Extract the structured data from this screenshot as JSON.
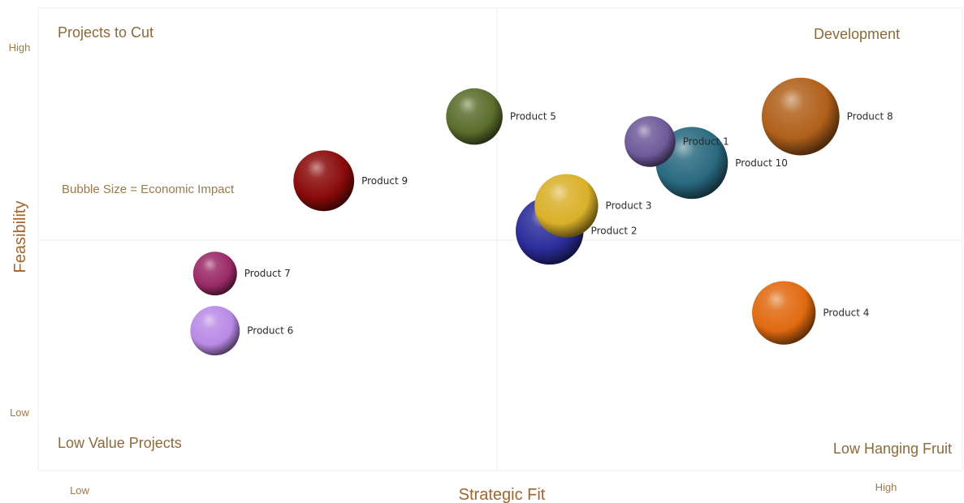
{
  "chart_data": {
    "type": "scatter",
    "title": "",
    "xlabel": "Strategic Fit",
    "ylabel": "Feasibility",
    "xlim": [
      0,
      10
    ],
    "ylim": [
      0,
      10
    ],
    "x_ticks": {
      "low": "Low",
      "high": "High"
    },
    "y_ticks": {
      "low": "Low",
      "high": "High"
    },
    "grid": false,
    "quadrant_dividers": {
      "x": 5,
      "y": 5
    },
    "quadrants": {
      "top_left": "Projects to Cut",
      "top_right": "Development",
      "bottom_left": "Low Value Projects",
      "bottom_right": "Low Hanging Fruit"
    },
    "annotation": "Bubble Size = Economic Impact",
    "points": [
      {
        "label": "Product 1",
        "x": 6.8,
        "y": 7.4,
        "size": 3.6,
        "color": "#6e5a9a"
      },
      {
        "label": "Product 10",
        "x": 7.3,
        "y": 6.8,
        "size": 5.1,
        "color": "#2a6a80"
      },
      {
        "label": "Product 3",
        "x": 5.8,
        "y": 5.6,
        "size": 4.5,
        "color": "#d9b02a"
      },
      {
        "label": "Product 2",
        "x": 5.6,
        "y": 4.9,
        "size": 4.8,
        "color": "#2b2c9a"
      },
      {
        "label": "Product 5",
        "x": 4.7,
        "y": 8.1,
        "size": 4.0,
        "color": "#5a6e2c"
      },
      {
        "label": "Product 8",
        "x": 8.6,
        "y": 8.1,
        "size": 5.5,
        "color": "#b0601a"
      },
      {
        "label": "Product 9",
        "x": 2.9,
        "y": 6.3,
        "size": 4.3,
        "color": "#8a0a0a"
      },
      {
        "label": "Product 7",
        "x": 1.6,
        "y": 3.7,
        "size": 3.1,
        "color": "#9a2a66"
      },
      {
        "label": "Product 6",
        "x": 1.6,
        "y": 2.1,
        "size": 3.5,
        "color": "#b98ae6"
      },
      {
        "label": "Product 4",
        "x": 8.4,
        "y": 2.6,
        "size": 4.5,
        "color": "#e06a10"
      }
    ]
  }
}
